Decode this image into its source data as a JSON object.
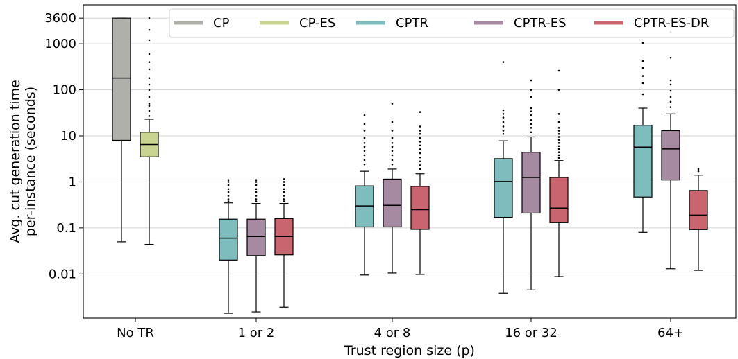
{
  "chart_data": {
    "type": "box",
    "xlabel": "Trust region size (p)",
    "ylabel_lines": [
      "Avg. cut generation time",
      "per-instance (seconds)"
    ],
    "yscale": "log",
    "ylim": [
      0.0011,
      7000
    ],
    "yticks": [
      {
        "value": 3600,
        "label": "3600"
      },
      {
        "value": 1000,
        "label": "1000"
      },
      {
        "value": 100,
        "label": "100"
      },
      {
        "value": 10,
        "label": "10"
      },
      {
        "value": 1,
        "label": "1"
      },
      {
        "value": 0.1,
        "label": "0.1"
      },
      {
        "value": 0.01,
        "label": "0.01"
      }
    ],
    "grid": "horizontal",
    "legend_position": "top",
    "series": [
      {
        "name": "CP",
        "color": "#b0b0ab"
      },
      {
        "name": "CP-ES",
        "color": "#c8d48f"
      },
      {
        "name": "CPTR",
        "color": "#7dbdbe"
      },
      {
        "name": "CPTR-ES",
        "color": "#a68aa2"
      },
      {
        "name": "CPTR-ES-DR",
        "color": "#c9656f"
      }
    ],
    "groups": [
      {
        "label": "No TR",
        "boxes": [
          {
            "series": "CP",
            "whislo": 0.05,
            "q1": 8.0,
            "med": 180,
            "q3": 3600,
            "whishi": 3600,
            "fliers": []
          },
          {
            "series": "CP-ES",
            "whislo": 0.044,
            "q1": 3.5,
            "med": 6.5,
            "q3": 12,
            "whishi": 23,
            "fliers": [
              27,
              35,
              45,
              50,
              70,
              100,
              130,
              180,
              280,
              400,
              600,
              1200,
              2000,
              3600
            ]
          }
        ]
      },
      {
        "label": "1 or 2",
        "boxes": [
          {
            "series": "CPTR",
            "whislo": 0.0014,
            "q1": 0.02,
            "med": 0.06,
            "q3": 0.155,
            "whishi": 0.35,
            "fliers": [
              0.38,
              0.42,
              0.5,
              0.6,
              0.7,
              0.85,
              1.0,
              1.1
            ]
          },
          {
            "series": "CPTR-ES",
            "whislo": 0.0015,
            "q1": 0.025,
            "med": 0.065,
            "q3": 0.155,
            "whishi": 0.34,
            "fliers": [
              0.38,
              0.42,
              0.5,
              0.6,
              0.7,
              0.85,
              1.0,
              1.1
            ]
          },
          {
            "series": "CPTR-ES-DR",
            "whislo": 0.0019,
            "q1": 0.026,
            "med": 0.065,
            "q3": 0.16,
            "whishi": 0.34,
            "fliers": [
              0.38,
              0.42,
              0.5,
              0.6,
              0.7,
              0.85,
              1.0,
              1.15
            ]
          }
        ]
      },
      {
        "label": "4 or 8",
        "boxes": [
          {
            "series": "CPTR",
            "whislo": 0.0095,
            "q1": 0.105,
            "med": 0.3,
            "q3": 0.82,
            "whishi": 1.7,
            "fliers": [
              2.4,
              3.0,
              3.8,
              4.7,
              5.8,
              7.0,
              9.0,
              13,
              18,
              28
            ]
          },
          {
            "series": "CPTR-ES",
            "whislo": 0.0105,
            "q1": 0.105,
            "med": 0.31,
            "q3": 1.15,
            "whishi": 1.9,
            "fliers": [
              2.4,
              3.0,
              3.8,
              4.7,
              5.8,
              7.0,
              9.0,
              13,
              20,
              50
            ]
          },
          {
            "series": "CPTR-ES-DR",
            "whislo": 0.0098,
            "q1": 0.093,
            "med": 0.25,
            "q3": 0.8,
            "whishi": 1.5,
            "fliers": [
              1.9,
              2.3,
              2.8,
              3.4,
              4.2,
              5.1,
              6.2,
              7.5,
              9.0,
              11,
              13,
              16,
              33
            ]
          }
        ]
      },
      {
        "label": "16 or 32",
        "boxes": [
          {
            "series": "CPTR",
            "whislo": 0.0038,
            "q1": 0.17,
            "med": 1.02,
            "q3": 3.2,
            "whishi": 7.8,
            "fliers": [
              11,
              13,
              16,
              20,
              25,
              30,
              36,
              400
            ]
          },
          {
            "series": "CPTR-ES",
            "whislo": 0.0045,
            "q1": 0.21,
            "med": 1.25,
            "q3": 4.4,
            "whishi": 9.5,
            "fliers": [
              12,
              15,
              18,
              22,
              28,
              34,
              40,
              70,
              100,
              160
            ]
          },
          {
            "series": "CPTR-ES-DR",
            "whislo": 0.0088,
            "q1": 0.13,
            "med": 0.27,
            "q3": 1.25,
            "whishi": 2.9,
            "fliers": [
              3.3,
              3.8,
              4.4,
              5.2,
              6.0,
              7.0,
              8.2,
              9.5,
              11,
              13,
              15,
              20,
              30,
              100,
              260
            ]
          }
        ]
      },
      {
        "label": "64+",
        "boxes": [
          {
            "series": "CPTR",
            "whislo": 0.08,
            "q1": 0.47,
            "med": 5.7,
            "q3": 17,
            "whishi": 40,
            "fliers": [
              80,
              140,
              200,
              300,
              420,
              1050
            ]
          },
          {
            "series": "CPTR-ES",
            "whislo": 0.013,
            "q1": 1.1,
            "med": 5.2,
            "q3": 13,
            "whishi": 30,
            "fliers": [
              42,
              55,
              70,
              95,
              130,
              160,
              500,
              1800
            ]
          },
          {
            "series": "CPTR-ES-DR",
            "whislo": 0.012,
            "q1": 0.092,
            "med": 0.19,
            "q3": 0.65,
            "whishi": 1.4,
            "fliers": [
              1.7,
              1.9
            ]
          }
        ]
      }
    ]
  }
}
